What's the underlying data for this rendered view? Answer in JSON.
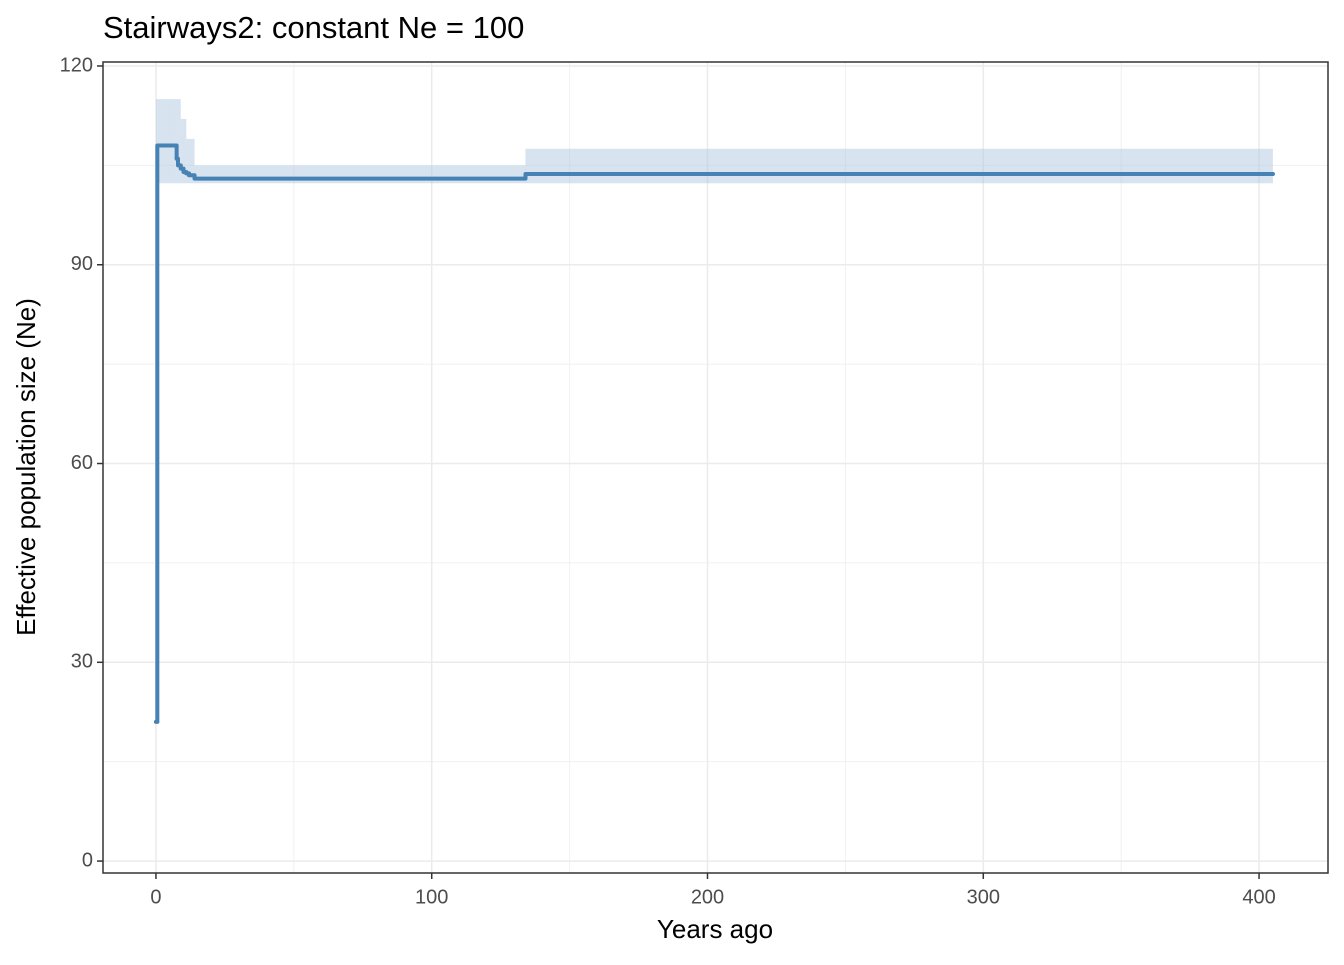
{
  "chart_data": {
    "type": "step-line",
    "title": "Stairways2: constant Ne = 100",
    "x_label": "Years ago",
    "y_label": "Effective population size (Ne)",
    "x": [
      0,
      0.5,
      7,
      7.5,
      8,
      9,
      10,
      11,
      12,
      14,
      134,
      405
    ],
    "series": [
      {
        "color": "#4682b4",
        "values": [
          21,
          108,
          108,
          106,
          105,
          104.5,
          104,
          103.8,
          103.5,
          103,
          103.7,
          103.7
        ]
      }
    ],
    "ribbon": {
      "color": "#b0c8e0",
      "lower": [
        102.3,
        102.3,
        102.3,
        102.3,
        102.3,
        102.3,
        102.3,
        102.3,
        102.3,
        102.3,
        102.3,
        102.3
      ],
      "upper": [
        115,
        115,
        115,
        115,
        115,
        112,
        112,
        109,
        109,
        105,
        107.5,
        107.5
      ]
    },
    "xlim": [
      -19.2,
      425
    ],
    "ylim": [
      -1.8,
      120.6
    ],
    "xticks": [
      0,
      100,
      200,
      300,
      400
    ],
    "yticks": [
      0,
      30,
      60,
      90,
      120
    ],
    "grid": true
  }
}
